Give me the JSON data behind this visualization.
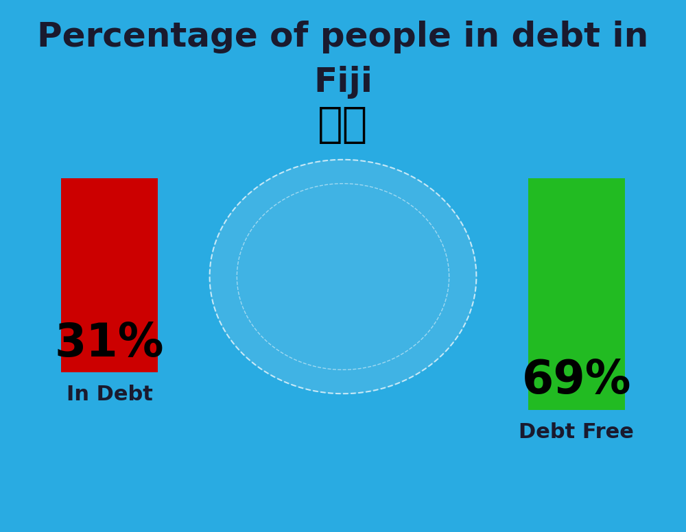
{
  "title_line1": "Percentage of people in debt in",
  "title_line2": "Fiji",
  "background_color": "#29ABE2",
  "bar1_value": 31,
  "bar2_value": 69,
  "bar1_label": "In Debt",
  "bar2_label": "Debt Free",
  "bar1_pct": "31%",
  "bar2_pct": "69%",
  "bar1_color": "#CC0000",
  "bar2_color": "#22BB22",
  "title_color": "#1a1a2e",
  "label_color": "#1a1a2e",
  "pct_color": "#000000",
  "title_fontsize": 36,
  "label_fontsize": 22,
  "pct_fontsize": 48,
  "fig_width": 10.0,
  "fig_height": 7.76
}
